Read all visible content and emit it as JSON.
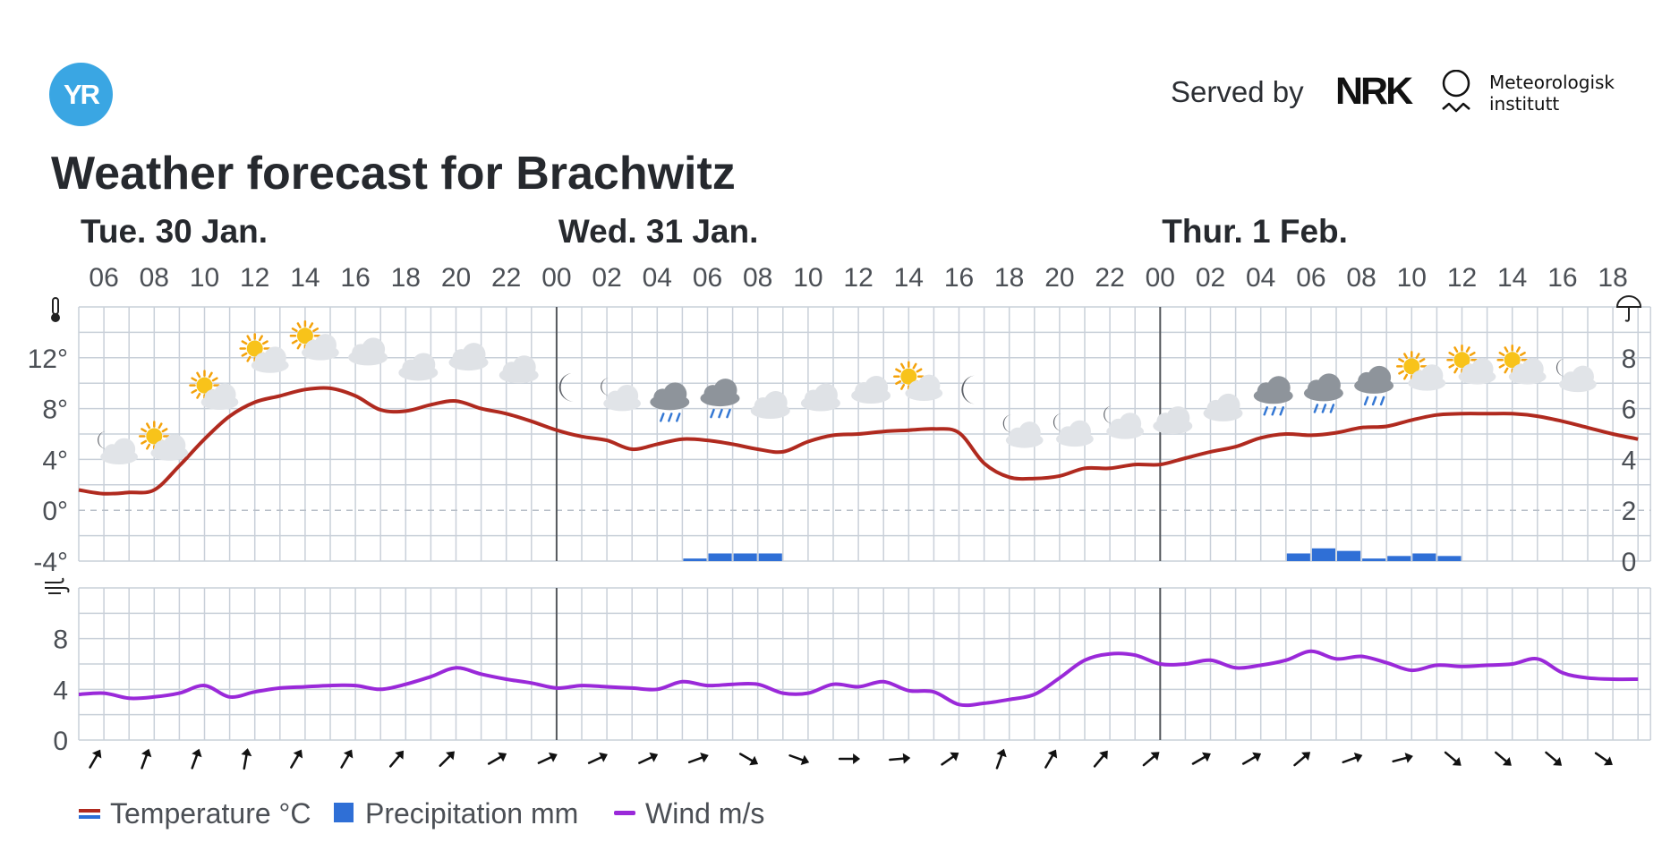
{
  "header": {
    "logo_text": "YR",
    "served_by": "Served by",
    "nrk": "NRK",
    "met_line1": "Meteorologisk",
    "met_line2": "institutt"
  },
  "title": "Weather forecast for Brachwitz",
  "colors": {
    "temperature": "#b02a1f",
    "temperature_legend_cold": "#2b6fd6",
    "precipitation": "#2f6fd6",
    "wind": "#9a29d9",
    "grid": "#c9d0d9",
    "day_separator": "#55585d",
    "text": "#2b2e33"
  },
  "chart_data": [
    {
      "type": "line",
      "title": "Temperature",
      "days": [
        {
          "label": "Tue. 30 Jan.",
          "start_hour_index": 0
        },
        {
          "label": "Wed. 31 Jan.",
          "start_hour_index": 19
        },
        {
          "label": "Thur. 1 Feb.",
          "start_hour_index": 43
        }
      ],
      "hour_labels": [
        "06",
        "08",
        "10",
        "12",
        "14",
        "16",
        "18",
        "20",
        "22",
        "00",
        "02",
        "04",
        "06",
        "08",
        "10",
        "12",
        "14",
        "16",
        "18",
        "20",
        "22",
        "00",
        "02",
        "04",
        "06",
        "08",
        "10",
        "12",
        "14",
        "16",
        "18"
      ],
      "hours": [
        "05",
        "06",
        "07",
        "08",
        "09",
        "10",
        "11",
        "12",
        "13",
        "14",
        "15",
        "16",
        "17",
        "18",
        "19",
        "20",
        "21",
        "22",
        "23",
        "00",
        "01",
        "02",
        "03",
        "04",
        "05",
        "06",
        "07",
        "08",
        "09",
        "10",
        "11",
        "12",
        "13",
        "14",
        "15",
        "16",
        "17",
        "18",
        "19",
        "20",
        "21",
        "22",
        "23",
        "00",
        "01",
        "02",
        "03",
        "04",
        "05",
        "06",
        "07",
        "08",
        "09",
        "10",
        "11",
        "12",
        "13",
        "14",
        "15",
        "16",
        "17",
        "18",
        "19"
      ],
      "y_left_ticks": [
        "12°",
        "8°",
        "4°",
        "0°",
        "-4°"
      ],
      "y_left_range": [
        -4,
        16
      ],
      "y_right_ticks": [
        "8",
        "6",
        "4",
        "2",
        "0"
      ],
      "y_right_range": [
        0,
        10
      ],
      "series": [
        {
          "name": "Temperature °C",
          "values": [
            1.6,
            1.3,
            1.4,
            1.6,
            3.5,
            5.6,
            7.4,
            8.5,
            9.0,
            9.5,
            9.6,
            9.0,
            7.9,
            7.8,
            8.3,
            8.6,
            8.0,
            7.6,
            7.0,
            6.3,
            5.8,
            5.5,
            4.8,
            5.2,
            5.6,
            5.5,
            5.2,
            4.8,
            4.6,
            5.4,
            5.9,
            6.0,
            6.2,
            6.3,
            6.4,
            6.1,
            3.7,
            2.6,
            2.5,
            2.7,
            3.3,
            3.3,
            3.6,
            3.6,
            4.1,
            4.6,
            5.0,
            5.7,
            6.0,
            5.9,
            6.1,
            6.5,
            6.6,
            7.1,
            7.5,
            7.6,
            7.6,
            7.6,
            7.4,
            7.0,
            6.5,
            6.0,
            5.6
          ]
        },
        {
          "name": "Precipitation mm",
          "type": "bar",
          "values": [
            0,
            0,
            0,
            0,
            0,
            0,
            0,
            0,
            0,
            0,
            0,
            0,
            0,
            0,
            0,
            0,
            0,
            0,
            0,
            0,
            0,
            0,
            0,
            0,
            0.1,
            0.3,
            0.3,
            0.3,
            0,
            0,
            0,
            0,
            0,
            0,
            0,
            0,
            0,
            0,
            0,
            0,
            0,
            0,
            0,
            0,
            0,
            0,
            0,
            0,
            0.3,
            0.5,
            0.4,
            0.1,
            0.2,
            0.3,
            0.2,
            0,
            0,
            0,
            0,
            0,
            0,
            0,
            0
          ]
        }
      ],
      "symbols": [
        {
          "hour_index": 1,
          "icon": "partly-cloudy-night-icon"
        },
        {
          "hour_index": 3,
          "icon": "partly-cloudy-day-icon"
        },
        {
          "hour_index": 5,
          "icon": "partly-cloudy-day-icon"
        },
        {
          "hour_index": 7,
          "icon": "partly-cloudy-day-icon"
        },
        {
          "hour_index": 9,
          "icon": "partly-cloudy-day-icon"
        },
        {
          "hour_index": 11,
          "icon": "cloudy-icon"
        },
        {
          "hour_index": 13,
          "icon": "cloudy-icon"
        },
        {
          "hour_index": 15,
          "icon": "cloudy-icon"
        },
        {
          "hour_index": 17,
          "icon": "cloudy-icon"
        },
        {
          "hour_index": 19,
          "icon": "clear-night-icon"
        },
        {
          "hour_index": 21,
          "icon": "partly-cloudy-night-icon"
        },
        {
          "hour_index": 23,
          "icon": "rain-icon"
        },
        {
          "hour_index": 25,
          "icon": "rain-icon"
        },
        {
          "hour_index": 27,
          "icon": "cloudy-icon"
        },
        {
          "hour_index": 29,
          "icon": "cloudy-icon"
        },
        {
          "hour_index": 31,
          "icon": "cloudy-icon"
        },
        {
          "hour_index": 33,
          "icon": "partly-cloudy-day-icon"
        },
        {
          "hour_index": 35,
          "icon": "clear-night-icon"
        },
        {
          "hour_index": 37,
          "icon": "partly-cloudy-night-icon"
        },
        {
          "hour_index": 39,
          "icon": "partly-cloudy-night-icon"
        },
        {
          "hour_index": 41,
          "icon": "partly-cloudy-night-icon"
        },
        {
          "hour_index": 43,
          "icon": "cloudy-icon"
        },
        {
          "hour_index": 45,
          "icon": "cloudy-icon"
        },
        {
          "hour_index": 47,
          "icon": "rain-icon"
        },
        {
          "hour_index": 49,
          "icon": "rain-icon"
        },
        {
          "hour_index": 51,
          "icon": "rain-icon"
        },
        {
          "hour_index": 53,
          "icon": "partly-cloudy-day-icon"
        },
        {
          "hour_index": 55,
          "icon": "partly-cloudy-day-icon"
        },
        {
          "hour_index": 57,
          "icon": "partly-cloudy-day-icon"
        },
        {
          "hour_index": 59,
          "icon": "partly-cloudy-night-icon"
        }
      ]
    },
    {
      "type": "line",
      "title": "Wind",
      "y_ticks": [
        "8",
        "4",
        "0"
      ],
      "y_range": [
        0,
        12
      ],
      "series": [
        {
          "name": "Wind m/s",
          "values": [
            3.6,
            3.7,
            3.3,
            3.4,
            3.7,
            4.3,
            3.4,
            3.8,
            4.1,
            4.2,
            4.3,
            4.3,
            4.0,
            4.4,
            5.0,
            5.7,
            5.2,
            4.8,
            4.5,
            4.1,
            4.3,
            4.2,
            4.1,
            4.0,
            4.6,
            4.3,
            4.4,
            4.4,
            3.7,
            3.7,
            4.4,
            4.2,
            4.6,
            3.9,
            3.8,
            2.8,
            2.9,
            3.2,
            3.6,
            4.9,
            6.3,
            6.8,
            6.7,
            6.0,
            6.0,
            6.3,
            5.7,
            5.9,
            6.3,
            7.0,
            6.4,
            6.6,
            6.1,
            5.5,
            5.9,
            5.8,
            5.9,
            6.0,
            6.4,
            5.3,
            4.9,
            4.8,
            4.8
          ]
        }
      ],
      "wind_directions": [
        "↗",
        "↗",
        "↗",
        "↗",
        "↗",
        "↗",
        "↗",
        "↗",
        "↗",
        "↗",
        "↗",
        "↗",
        "↗",
        "↘",
        "↘",
        "↗",
        "↗",
        "↗",
        "↗",
        "↗",
        "↗",
        "↗",
        "↗",
        "↗",
        "↗",
        "↗",
        "↗",
        "↘",
        "↘",
        "↘",
        "↘"
      ],
      "wind_direction_degrees": [
        210,
        200,
        200,
        190,
        210,
        210,
        220,
        225,
        240,
        245,
        245,
        245,
        250,
        300,
        290,
        270,
        265,
        235,
        200,
        210,
        220,
        230,
        240,
        240,
        230,
        250,
        255,
        310,
        310,
        310,
        305
      ]
    }
  ],
  "legend": [
    {
      "label": "Temperature °C",
      "swatch": "temperature"
    },
    {
      "label": "Precipitation mm",
      "swatch": "precipitation"
    },
    {
      "label": "Wind m/s",
      "swatch": "wind"
    }
  ]
}
